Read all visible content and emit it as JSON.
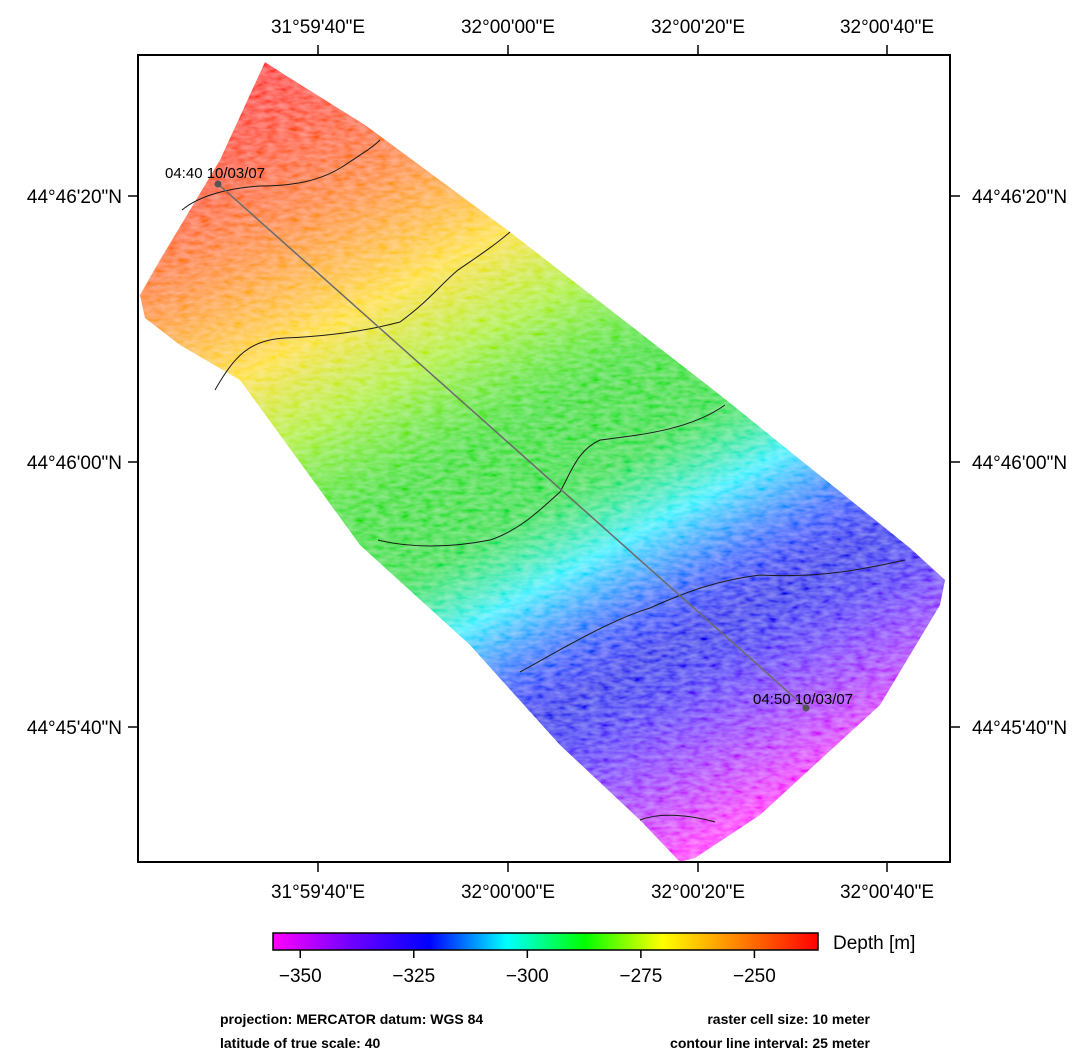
{
  "map": {
    "lon_labels": [
      "31°59'40\"E",
      "32°00'00\"E",
      "32°00'20\"E",
      "32°00'40\"E"
    ],
    "lat_labels": [
      "44°46'20\"N",
      "44°46'00\"N",
      "44°45'40\"N"
    ],
    "track": {
      "start_label": "04:40 10/03/07",
      "end_label": "04:50 10/03/07"
    }
  },
  "legend": {
    "title": "Depth [m]",
    "ticks": [
      "−350",
      "−325",
      "−300",
      "−275",
      "−250"
    ],
    "tick_values": [
      -350,
      -325,
      -300,
      -275,
      -250
    ],
    "range": [
      -356,
      -236
    ],
    "colors": [
      "#ff00ff",
      "#7000ff",
      "#0000ff",
      "#00ffff",
      "#00ff00",
      "#ffff00",
      "#ff8000",
      "#ff0000"
    ]
  },
  "footer": {
    "projection": "projection: MERCATOR datum: WGS 84",
    "true_scale": "latitude of true scale: 40",
    "cell_size": "raster cell size: 10 meter",
    "contour_interval": "contour line interval: 25 meter"
  }
}
